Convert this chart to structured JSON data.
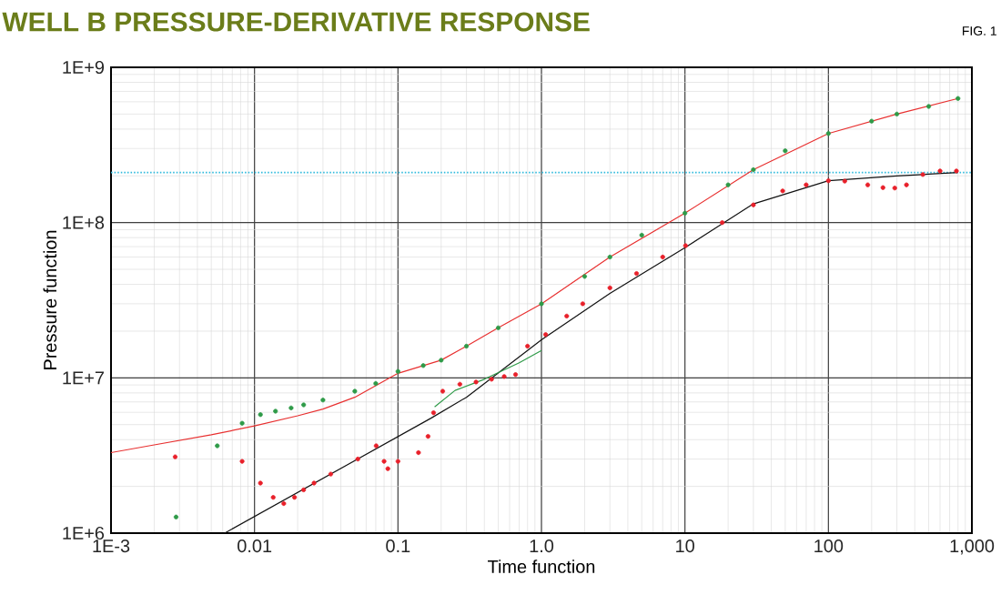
{
  "chart_data": {
    "type": "scatter",
    "title": "WELL B PRESSURE-DERIVATIVE RESPONSE",
    "annotations": [
      "FIG. 1"
    ],
    "xlabel": "Time function",
    "ylabel": "Pressure function",
    "log": "xy",
    "grid": true,
    "xlim": [
      0.001,
      1000
    ],
    "ylim": [
      1000000,
      1000000000
    ],
    "xticks": [
      {
        "value": 0.001,
        "label": "1E-3"
      },
      {
        "value": 0.01,
        "label": "0.01"
      },
      {
        "value": 0.1,
        "label": "0.1"
      },
      {
        "value": 1,
        "label": "1.0"
      },
      {
        "value": 10,
        "label": "10"
      },
      {
        "value": 100,
        "label": "100"
      },
      {
        "value": 1000,
        "label": "1,000"
      }
    ],
    "yticks": [
      {
        "value": 1000000,
        "label": "1E+6"
      },
      {
        "value": 10000000,
        "label": "1E+7"
      },
      {
        "value": 100000000,
        "label": "1E+8"
      },
      {
        "value": 1000000000,
        "label": "1E+9"
      }
    ],
    "ref_lines": [
      {
        "axis": "y",
        "value": 210000000,
        "color": "#33bbdd",
        "line_style": "dotted"
      }
    ],
    "series": [
      {
        "type": "line",
        "color": "#e83030",
        "marker": "none",
        "x": [
          0.001,
          0.002,
          0.005,
          0.01,
          0.02,
          0.03,
          0.05,
          0.1,
          0.2,
          0.3,
          0.5,
          1,
          3,
          10,
          30,
          100,
          300,
          800
        ],
        "values": [
          3300000,
          3700000,
          4300000,
          4900000,
          5700000,
          6300000,
          7500000,
          10700000,
          13000000,
          16000000,
          21000000,
          30000000,
          60000000,
          115000000,
          219000000,
          375000000,
          500000000,
          630000000
        ]
      },
      {
        "type": "line",
        "color": "#111111",
        "marker": "none",
        "x": [
          0.0062,
          0.17,
          0.3,
          1,
          3,
          10,
          30,
          100,
          300,
          800
        ],
        "values": [
          1000000,
          5500000,
          7500000,
          17600000,
          35000000,
          69000000,
          132000000,
          186000000,
          200000000,
          210000000
        ]
      },
      {
        "type": "line",
        "color": "#2e9a48",
        "marker": "none",
        "x": [
          0.18,
          0.25,
          0.4,
          0.7,
          1.0
        ],
        "values": [
          6500000,
          8300000,
          9800000,
          12500000,
          15000000
        ]
      },
      {
        "color": "#2e9a48",
        "marker": "circle",
        "x": [
          0.00284,
          0.0055,
          0.0082,
          0.011,
          0.014,
          0.018,
          0.022,
          0.03,
          0.05,
          0.07,
          0.1,
          0.15,
          0.2,
          0.3,
          0.5,
          1,
          2,
          3,
          5,
          10,
          20,
          30,
          50,
          100,
          200,
          300,
          500,
          800
        ],
        "values": [
          1270000,
          3650000,
          5100000,
          5800000,
          6100000,
          6400000,
          6700000,
          7200000,
          8200000,
          9200000,
          11000000,
          12000000,
          13000000,
          16000000,
          21000000,
          30000000,
          45000000,
          60000000,
          83000000,
          115000000,
          175000000,
          219000000,
          290000000,
          375000000,
          450000000,
          500000000,
          560000000,
          630000000
        ]
      },
      {
        "color": "#e8202a",
        "marker": "circle",
        "x": [
          0.0028,
          0.0082,
          0.011,
          0.0135,
          0.016,
          0.019,
          0.022,
          0.026,
          0.034,
          0.0525,
          0.0705,
          0.08,
          0.085,
          0.1,
          0.139,
          0.162,
          0.177,
          0.205,
          0.27,
          0.35,
          0.449,
          0.55,
          0.66,
          0.8,
          1.07,
          1.5,
          1.94,
          3,
          4.6,
          7,
          10.1,
          18.2,
          30,
          48,
          70,
          100,
          130,
          188,
          240,
          290,
          350,
          455,
          600,
          780
        ],
        "values": [
          3100000,
          2900000,
          2100000,
          1700000,
          1550000,
          1700000,
          1900000,
          2100000,
          2400000,
          3000000,
          3650000,
          2900000,
          2600000,
          2900000,
          3300000,
          4200000,
          5960000,
          8200000,
          9100000,
          9400000,
          9800000,
          10200000,
          10500000,
          16000000,
          19000000,
          25000000,
          30000000,
          38000000,
          47000000,
          60000000,
          71000000,
          100000000,
          130000000,
          160000000,
          175000000,
          186000000,
          185000000,
          175000000,
          168000000,
          167000000,
          175000000,
          204000000,
          215000000,
          215000000
        ]
      }
    ]
  }
}
